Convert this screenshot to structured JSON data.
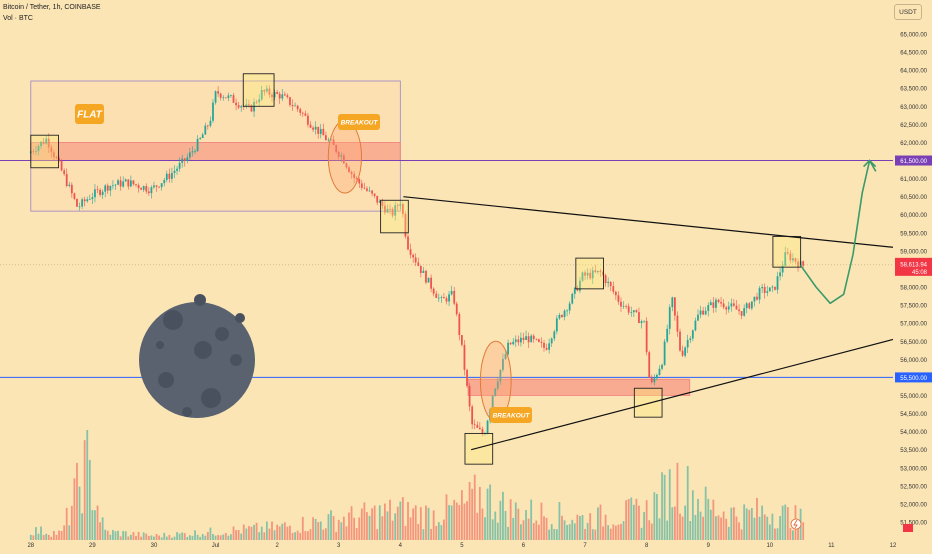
{
  "header": {
    "title": "Bitcoin / Tether, 1h, COINBASE",
    "volume_label": "Vol · BTC",
    "unit_button": "USDT"
  },
  "chart_data": {
    "type": "candlestick",
    "title": "Bitcoin / Tether, 1h, COINBASE",
    "y_axis": {
      "min": 51000,
      "max": 65000,
      "ticks": [
        "65,000.00",
        "64,500.00",
        "64,000.00",
        "63,500.00",
        "63,000.00",
        "62,500.00",
        "62,000.00",
        "61,500.00",
        "61,000.00",
        "60,500.00",
        "60,000.00",
        "59,500.00",
        "59,000.00",
        "58,500.00",
        "58,000.00",
        "57,500.00",
        "57,000.00",
        "56,500.00",
        "56,000.00",
        "55,500.00",
        "55,000.00",
        "54,500.00",
        "54,000.00",
        "53,500.00",
        "53,000.00",
        "52,500.00",
        "52,000.00",
        "51,500.00"
      ]
    },
    "x_axis": {
      "ticks": [
        {
          "label": "28",
          "day": 0
        },
        {
          "label": "29",
          "day": 1
        },
        {
          "label": "30",
          "day": 2
        },
        {
          "label": "Jul",
          "day": 3
        },
        {
          "label": "2",
          "day": 4
        },
        {
          "label": "3",
          "day": 5
        },
        {
          "label": "4",
          "day": 6
        },
        {
          "label": "5",
          "day": 7
        },
        {
          "label": "6",
          "day": 8
        },
        {
          "label": "7",
          "day": 9
        },
        {
          "label": "8",
          "day": 10
        },
        {
          "label": "9",
          "day": 11
        },
        {
          "label": "10",
          "day": 12
        },
        {
          "label": "11",
          "day": 13
        },
        {
          "label": "12",
          "day": 14
        }
      ]
    },
    "price_path": [
      [
        0.0,
        61700
      ],
      [
        0.3,
        62100
      ],
      [
        0.6,
        61000
      ],
      [
        0.8,
        60200
      ],
      [
        1.0,
        60500
      ],
      [
        1.3,
        60800
      ],
      [
        1.6,
        60900
      ],
      [
        2.0,
        60700
      ],
      [
        2.3,
        61100
      ],
      [
        2.6,
        61600
      ],
      [
        2.8,
        62100
      ],
      [
        2.95,
        62600
      ],
      [
        3.05,
        63400
      ],
      [
        3.3,
        63200
      ],
      [
        3.6,
        62900
      ],
      [
        3.8,
        63400
      ],
      [
        4.1,
        63300
      ],
      [
        4.4,
        62900
      ],
      [
        4.6,
        62500
      ],
      [
        4.9,
        62000
      ],
      [
        5.1,
        61600
      ],
      [
        5.3,
        61000
      ],
      [
        5.6,
        60500
      ],
      [
        5.9,
        60000
      ],
      [
        6.05,
        60400
      ],
      [
        6.15,
        59200
      ],
      [
        6.4,
        58400
      ],
      [
        6.7,
        57600
      ],
      [
        6.9,
        57800
      ],
      [
        7.05,
        56200
      ],
      [
        7.2,
        54200
      ],
      [
        7.4,
        53900
      ],
      [
        7.55,
        55100
      ],
      [
        7.8,
        56400
      ],
      [
        8.1,
        56600
      ],
      [
        8.4,
        56300
      ],
      [
        8.6,
        57100
      ],
      [
        8.8,
        57600
      ],
      [
        9.0,
        58300
      ],
      [
        9.3,
        58400
      ],
      [
        9.6,
        57600
      ],
      [
        9.8,
        57300
      ],
      [
        10.0,
        57000
      ],
      [
        10.1,
        55200
      ],
      [
        10.3,
        56000
      ],
      [
        10.45,
        57700
      ],
      [
        10.6,
        56100
      ],
      [
        10.9,
        57300
      ],
      [
        11.2,
        57600
      ],
      [
        11.6,
        57300
      ],
      [
        11.9,
        57900
      ],
      [
        12.1,
        57900
      ],
      [
        12.2,
        58400
      ],
      [
        12.3,
        58900
      ],
      [
        12.45,
        58750
      ],
      [
        12.55,
        58600
      ]
    ],
    "volume_path": [
      [
        0,
        0.12
      ],
      [
        0.5,
        0.08
      ],
      [
        0.9,
        0.9
      ],
      [
        1.2,
        0.1
      ],
      [
        2,
        0.05
      ],
      [
        3,
        0.1
      ],
      [
        4,
        0.15
      ],
      [
        5,
        0.25
      ],
      [
        6,
        0.35
      ],
      [
        6.5,
        0.3
      ],
      [
        7,
        0.4
      ],
      [
        7.3,
        0.55
      ],
      [
        7.8,
        0.35
      ],
      [
        8.5,
        0.3
      ],
      [
        9,
        0.25
      ],
      [
        9.5,
        0.3
      ],
      [
        10,
        0.35
      ],
      [
        10.5,
        0.7
      ],
      [
        11,
        0.4
      ],
      [
        11.5,
        0.3
      ],
      [
        12,
        0.35
      ],
      [
        12.5,
        0.25
      ]
    ],
    "current_price": {
      "label": "58,613.94",
      "countdown": "45:08",
      "value": 58613.94,
      "color": "#f23645"
    },
    "levels": [
      {
        "label": "61,500.00",
        "value": 61500,
        "color": "#7b3fb5"
      },
      {
        "label": "55,500.00",
        "value": 55500,
        "color": "#2962ff"
      }
    ],
    "trendlines": [
      {
        "name": "resistance",
        "from": [
          6.05,
          60500
        ],
        "to": [
          14.0,
          59100
        ],
        "color": "#111111"
      },
      {
        "name": "support",
        "from": [
          7.15,
          53500
        ],
        "to": [
          14.0,
          56550
        ],
        "color": "#111111"
      }
    ],
    "zones": [
      {
        "name": "flat-range",
        "x0": 0,
        "x1": 6.0,
        "y0": 60100,
        "y1": 63700,
        "fill": "rgba(255,215,170,0.35)",
        "stroke": "#9b82c9"
      },
      {
        "name": "supply-zone-1",
        "x0": 0,
        "x1": 6.0,
        "y0": 61500,
        "y1": 62000,
        "fill": "rgba(242,54,69,0.28)",
        "stroke": "#f08080"
      },
      {
        "name": "demand-zone",
        "x0": 7.1,
        "x1": 10.7,
        "y0": 55000,
        "y1": 55450,
        "fill": "rgba(242,54,69,0.33)",
        "stroke": "#f08080"
      }
    ],
    "boxes": [
      {
        "x0": 0.0,
        "x1": 0.45,
        "y0": 61300,
        "y1": 62200
      },
      {
        "x0": 3.45,
        "x1": 3.95,
        "y0": 63000,
        "y1": 63900
      },
      {
        "x0": 5.68,
        "x1": 6.13,
        "y0": 59500,
        "y1": 60400
      },
      {
        "x0": 7.05,
        "x1": 7.5,
        "y0": 53100,
        "y1": 53950
      },
      {
        "x0": 8.85,
        "x1": 9.3,
        "y0": 57950,
        "y1": 58800
      },
      {
        "x0": 9.8,
        "x1": 10.25,
        "y0": 54400,
        "y1": 55200
      },
      {
        "x0": 12.05,
        "x1": 12.5,
        "y0": 58550,
        "y1": 59400
      }
    ],
    "circles": [
      {
        "cx": 5.1,
        "cy": 61600,
        "rx": 0.27,
        "ry": 1000
      },
      {
        "cx": 7.55,
        "cy": 55400,
        "rx": 0.25,
        "ry": 1100
      }
    ],
    "projection": [
      [
        12.5,
        58600
      ],
      [
        12.75,
        58000
      ],
      [
        12.98,
        57550
      ],
      [
        13.2,
        57800
      ],
      [
        13.35,
        58900
      ],
      [
        13.5,
        60600
      ],
      [
        13.62,
        61500
      ],
      [
        13.72,
        61200
      ]
    ],
    "annotations": [
      {
        "text": "FLAT",
        "kind": "label"
      },
      {
        "text": "BREAKOUT",
        "kind": "label"
      },
      {
        "text": "BREAKOUT",
        "kind": "label"
      }
    ]
  }
}
